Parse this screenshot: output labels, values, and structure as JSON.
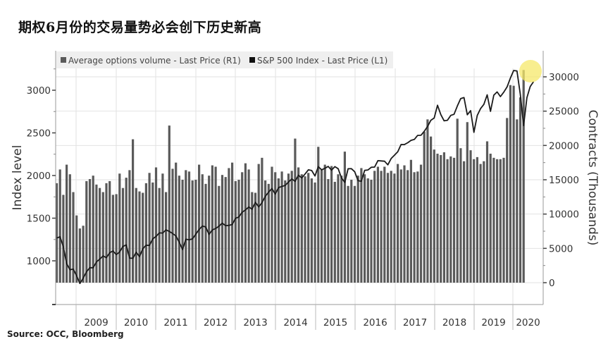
{
  "title": "期权6月份的交易量势必会创下历史新高",
  "source": "Source: OCC, Bloomberg",
  "legend": [
    {
      "label": "Average options volume - Last Price (R1)",
      "color": "#5a5a5a"
    },
    {
      "label": "S&P 500 Index - Last Price (L1)",
      "color": "#111111"
    }
  ],
  "axes": {
    "left_title": "Index level",
    "right_title": "Contracts (Thousands)",
    "left_ticks": [
      "1000",
      "1500",
      "2000",
      "2500",
      "3000"
    ],
    "right_ticks": [
      "0",
      "5000",
      "10000",
      "15000",
      "20000",
      "25000",
      "30000"
    ],
    "x_labels": [
      "2009",
      "2010",
      "2011",
      "2012",
      "2013",
      "2014",
      "2015",
      "2016",
      "2017",
      "2018",
      "2019",
      "2020"
    ]
  },
  "colors": {
    "bar": "#5a5a5a",
    "line": "#1a1a1a",
    "grid": "#e2e2e2",
    "axis": "#9a9a9a",
    "legend_bg": "#efefef",
    "highlight": "#f5e86a"
  },
  "chart_data": {
    "type": "bar",
    "title": "期权6月份的交易量势必会创下历史新高",
    "xlabel": "",
    "ylabel_left": "Index level",
    "ylabel_right": "Contracts (Thousands)",
    "ylim_left": [
      700,
      3250
    ],
    "ylim_right": [
      0,
      31000
    ],
    "grid": true,
    "legend_position": "top-left",
    "x_range": "2008-07 to 2020-06 (monthly)",
    "categories_start": "2008-07",
    "series": [
      {
        "name": "Average options volume - Last Price (R1)",
        "axis": "right",
        "type": "bar",
        "values": [
          14500,
          16500,
          12800,
          17200,
          15800,
          13200,
          9800,
          7900,
          8300,
          14800,
          15100,
          15600,
          14300,
          13800,
          13200,
          14500,
          14800,
          12800,
          12900,
          15900,
          13800,
          15300,
          16400,
          20900,
          13800,
          13300,
          13100,
          14500,
          16000,
          14600,
          16800,
          13800,
          15900,
          13200,
          22900,
          16600,
          17500,
          15600,
          15000,
          16400,
          16200,
          14900,
          15000,
          17200,
          15800,
          14400,
          15600,
          17100,
          16900,
          14100,
          15700,
          15400,
          16700,
          17500,
          14800,
          15000,
          16100,
          17400,
          16500,
          13200,
          13100,
          17300,
          18200,
          14900,
          14400,
          16900,
          16100,
          15200,
          16200,
          14900,
          15900,
          16300,
          21000,
          16800,
          15800,
          15500,
          16000,
          15200,
          14600,
          19800,
          16500,
          17200,
          15100,
          17000,
          14700,
          15800,
          15600,
          19100,
          14100,
          15000,
          14100,
          15600,
          16700,
          15800,
          15200,
          15000,
          16300,
          16900,
          16300,
          16900,
          16000,
          16300,
          15900,
          17300,
          16500,
          17100,
          16400,
          17900,
          16100,
          16200,
          17200,
          22000,
          23800,
          21300,
          19400,
          18800,
          18600,
          19000,
          18000,
          18400,
          18200,
          23900,
          19600,
          17700,
          23400,
          19300,
          18000,
          18300,
          17300,
          17700,
          20600,
          18800,
          18200,
          18000,
          18000,
          18200,
          24000,
          28800,
          28700,
          23800,
          27000,
          31000
        ],
        "units": "thousands of contracts"
      },
      {
        "name": "S&P 500 Index - Last Price (L1)",
        "axis": "left",
        "type": "line",
        "values": [
          1267,
          1282,
          1165,
          968,
          896,
          903,
          825,
          735,
          797,
          872,
          919,
          919,
          987,
          1020,
          1057,
          1036,
          1095,
          1115,
          1073,
          1104,
          1169,
          1187,
          1031,
          1030,
          1101,
          1049,
          1141,
          1183,
          1180,
          1257,
          1286,
          1327,
          1326,
          1363,
          1345,
          1320,
          1292,
          1218,
          1131,
          1253,
          1247,
          1257,
          1312,
          1366,
          1408,
          1397,
          1310,
          1362,
          1379,
          1406,
          1441,
          1412,
          1416,
          1426,
          1498,
          1514,
          1569,
          1597,
          1631,
          1606,
          1685,
          1633,
          1682,
          1757,
          1806,
          1848,
          1783,
          1859,
          1872,
          1884,
          1924,
          1960,
          1931,
          2003,
          1972,
          2018,
          2067,
          2059,
          1995,
          2104,
          2067,
          2085,
          2107,
          2063,
          2104,
          2080,
          1972,
          1920,
          2079,
          2080,
          2044,
          1940,
          1932,
          2060,
          2065,
          2097,
          2099,
          2174,
          2171,
          2168,
          2126,
          2199,
          2239,
          2279,
          2364,
          2363,
          2384,
          2412,
          2423,
          2470,
          2472,
          2519,
          2575,
          2648,
          2674,
          2824,
          2714,
          2641,
          2648,
          2705,
          2718,
          2816,
          2902,
          2914,
          2712,
          2760,
          2507,
          2704,
          2784,
          2834,
          2946,
          2752,
          2942,
          2980,
          2926,
          2977,
          3038,
          3141,
          3231,
          3226,
          2954,
          2585,
          2912,
          3044,
          3100
        ],
        "units": "index points"
      }
    ],
    "annotations": [
      "Yellow highlight circle at the latest (June 2020) volume bar"
    ]
  }
}
